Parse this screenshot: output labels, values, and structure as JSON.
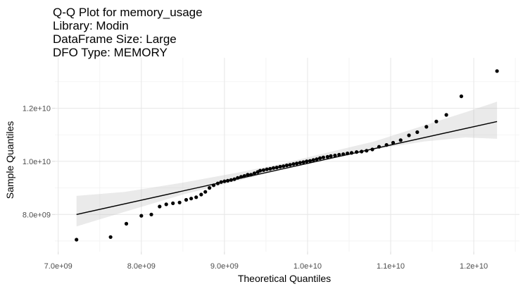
{
  "chart_data": {
    "type": "scatter",
    "title_lines": [
      "Q-Q Plot for memory_usage",
      "Library: Modin",
      "DataFrame Size: Large",
      "DFO Type: MEMORY"
    ],
    "xlabel": "Theoretical Quantiles",
    "ylabel": "Sample Quantiles",
    "xlim": [
      6960000000.0,
      12550000000.0
    ],
    "ylim": [
      6600000000.0,
      13900000000.0
    ],
    "x_ticks": [
      7000000000.0,
      8000000000.0,
      9000000000.0,
      10000000000.0,
      11000000000.0,
      12000000000.0
    ],
    "x_tick_labels": [
      "7.0e+09",
      "8.0e+09",
      "9.0e+09",
      "1.0e+10",
      "1.1e+10",
      "1.2e+10"
    ],
    "y_ticks": [
      8000000000.0,
      10000000000.0,
      12000000000.0
    ],
    "y_tick_labels": [
      "8.0e+09",
      "1.0e+10",
      "1.2e+10"
    ],
    "grid": true,
    "reference_line": {
      "x": [
        7220000000.0,
        12280000000.0
      ],
      "y": [
        8000000000.0,
        11500000000.0
      ]
    },
    "confidence_band": {
      "x": [
        7220000000.0,
        7800000000.0,
        8500000000.0,
        9200000000.0,
        9700000000.0,
        10200000000.0,
        10800000000.0,
        11400000000.0,
        11900000000.0,
        12280000000.0
      ],
      "lower": [
        7550000000.0,
        8100000000.0,
        8750000000.0,
        9300000000.0,
        9700000000.0,
        10050000000.0,
        10450000000.0,
        10750000000.0,
        10900000000.0,
        10850000000.0
      ],
      "upper": [
        8700000000.0,
        8850000000.0,
        9200000000.0,
        9600000000.0,
        9920000000.0,
        10300000000.0,
        10750000000.0,
        11350000000.0,
        11850000000.0,
        12250000000.0
      ]
    },
    "points": {
      "x": [
        7220000000.0,
        7630000000.0,
        7820000000.0,
        8000000000.0,
        8120000000.0,
        8220000000.0,
        8300000000.0,
        8380000000.0,
        8460000000.0,
        8540000000.0,
        8600000000.0,
        8660000000.0,
        8720000000.0,
        8770000000.0,
        8820000000.0,
        8870000000.0,
        8920000000.0,
        8960000000.0,
        9000000000.0,
        9040000000.0,
        9080000000.0,
        9120000000.0,
        9160000000.0,
        9200000000.0,
        9240000000.0,
        9280000000.0,
        9320000000.0,
        9360000000.0,
        9400000000.0,
        9430000000.0,
        9470000000.0,
        9510000000.0,
        9550000000.0,
        9590000000.0,
        9630000000.0,
        9670000000.0,
        9710000000.0,
        9750000000.0,
        9790000000.0,
        9830000000.0,
        9870000000.0,
        9910000000.0,
        9950000000.0,
        9990000000.0,
        10030000000.0,
        10070000000.0,
        10110000000.0,
        10150000000.0,
        10190000000.0,
        10240000000.0,
        10280000000.0,
        10330000000.0,
        10380000000.0,
        10430000000.0,
        10480000000.0,
        10530000000.0,
        10590000000.0,
        10650000000.0,
        10710000000.0,
        10780000000.0,
        10860000000.0,
        10950000000.0,
        11030000000.0,
        11120000000.0,
        11220000000.0,
        11320000000.0,
        11430000000.0,
        11550000000.0,
        11670000000.0,
        11850000000.0,
        12280000000.0
      ],
      "y": [
        7050000000.0,
        7150000000.0,
        7650000000.0,
        7950000000.0,
        8000000000.0,
        8300000000.0,
        8380000000.0,
        8420000000.0,
        8450000000.0,
        8550000000.0,
        8600000000.0,
        8650000000.0,
        8750000000.0,
        8850000000.0,
        9000000000.0,
        9100000000.0,
        9170000000.0,
        9220000000.0,
        9250000000.0,
        9270000000.0,
        9300000000.0,
        9330000000.0,
        9380000000.0,
        9420000000.0,
        9450000000.0,
        9500000000.0,
        9500000000.0,
        9550000000.0,
        9600000000.0,
        9650000000.0,
        9670000000.0,
        9700000000.0,
        9720000000.0,
        9750000000.0,
        9770000000.0,
        9800000000.0,
        9820000000.0,
        9850000000.0,
        9870000000.0,
        9900000000.0,
        9920000000.0,
        9950000000.0,
        9970000000.0,
        10000000000.0,
        10020000000.0,
        10050000000.0,
        10080000000.0,
        10120000000.0,
        10150000000.0,
        10170000000.0,
        10200000000.0,
        10220000000.0,
        10250000000.0,
        10270000000.0,
        10300000000.0,
        10320000000.0,
        10350000000.0,
        10370000000.0,
        10400000000.0,
        10450000000.0,
        10550000000.0,
        10620000000.0,
        10700000000.0,
        10800000000.0,
        10980000000.0,
        11100000000.0,
        11300000000.0,
        11500000000.0,
        11750000000.0,
        12450000000.0,
        13400000000.0
      ]
    }
  }
}
